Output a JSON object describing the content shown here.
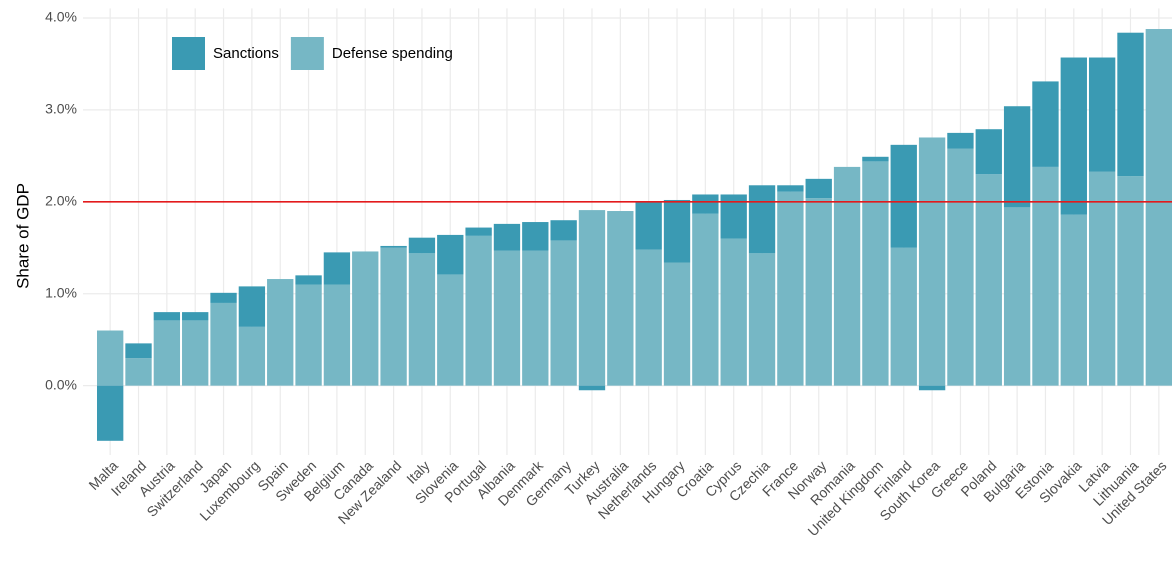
{
  "chart_data": {
    "type": "stacked-bar",
    "y_label": "Share of GDP",
    "categories": [
      "Malta",
      "Ireland",
      "Austria",
      "Switzerland",
      "Japan",
      "Luxembourg",
      "Spain",
      "Sweden",
      "Belgium",
      "Canada",
      "New Zealand",
      "Italy",
      "Slovenia",
      "Portugal",
      "Albania",
      "Denmark",
      "Germany",
      "Turkey",
      "Australia",
      "Netherlands",
      "Hungary",
      "Croatia",
      "Cyprus",
      "Czechia",
      "France",
      "Norway",
      "Romania",
      "United Kingdom",
      "Finland",
      "South Korea",
      "Greece",
      "Poland",
      "Bulgaria",
      "Estonia",
      "Slovakia",
      "Latvia",
      "Lithuania",
      "United States"
    ],
    "series": [
      {
        "name": "Defense spending",
        "color": "#76b7c5",
        "values": [
          0.6,
          0.3,
          0.71,
          0.71,
          0.9,
          0.64,
          1.16,
          1.1,
          1.1,
          1.46,
          1.5,
          1.44,
          1.21,
          1.63,
          1.47,
          1.47,
          1.58,
          1.91,
          1.9,
          1.48,
          1.34,
          1.87,
          1.6,
          1.44,
          2.11,
          2.04,
          2.38,
          2.44,
          1.5,
          2.7,
          2.58,
          2.3,
          1.94,
          2.38,
          1.86,
          2.33,
          2.28,
          3.88
        ]
      },
      {
        "name": "Sanctions",
        "color": "#3a9ab3",
        "values": [
          -0.6,
          0.16,
          0.09,
          0.09,
          0.11,
          0.44,
          0,
          0.1,
          0.35,
          0,
          0.02,
          0.17,
          0.43,
          0.09,
          0.29,
          0.31,
          0.22,
          -0.05,
          0,
          0.52,
          0.68,
          0.21,
          0.48,
          0.74,
          0.07,
          0.21,
          0,
          0.05,
          1.12,
          -0.05,
          0.17,
          0.49,
          1.1,
          0.93,
          1.71,
          1.24,
          1.56,
          0
        ]
      }
    ],
    "ylim": [
      -0.7,
      4.05
    ],
    "yticks": [
      {
        "value": 0,
        "label": "0.0%"
      },
      {
        "value": 1,
        "label": "1.0%"
      },
      {
        "value": 2,
        "label": "2.0%"
      },
      {
        "value": 3,
        "label": "3.0%"
      },
      {
        "value": 4,
        "label": "4.0%"
      }
    ],
    "reference_line": 2,
    "reference_color": "#e31a1c",
    "grid": true,
    "legend_position": "top-left"
  }
}
